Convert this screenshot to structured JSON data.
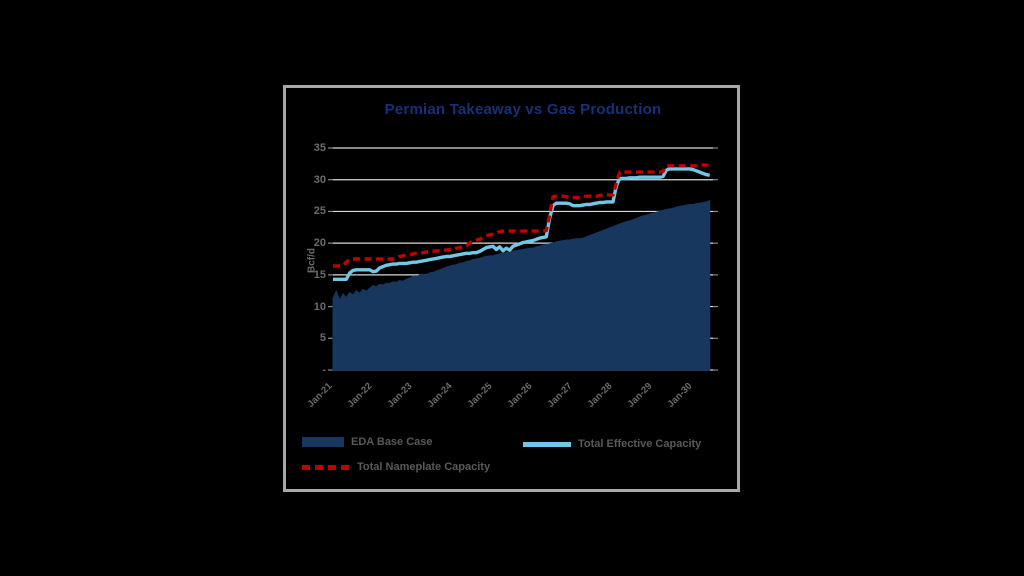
{
  "card": {
    "border_color": "#A8A8A8",
    "background": "#000000"
  },
  "chart": {
    "title": "Permian Takeaway vs Gas Production",
    "title_color": "#16307A",
    "ylabel": "Bcf/d",
    "axis_text_color": "#6b6b6b",
    "gridline_color": "#D9D9D9",
    "tick_mark_color": "#8a8a8a",
    "y_ticks": [
      "35",
      "30",
      "25",
      "20",
      "15",
      "10",
      "5",
      "-"
    ]
  },
  "chart_data": {
    "type": "area",
    "title": "Permian Takeaway vs Gas Production",
    "xlabel": "",
    "ylabel": "Bcf/d",
    "ylim": [
      0,
      35
    ],
    "y_tick_step": 5,
    "grid": "horizontal",
    "legend_position": "bottom",
    "x_tick_labels": [
      "Jan-21",
      "Jan-22",
      "Jan-23",
      "Jan-24",
      "Jan-25",
      "Jan-26",
      "Jan-27",
      "Jan-28",
      "Jan-29",
      "Jan-30"
    ],
    "x_unit": "monthly, Jan-2021 through Jun-2030",
    "series": [
      {
        "name": "EDA Base Case",
        "type": "area",
        "color": "#17375E",
        "values": [
          11.3,
          12.4,
          11.0,
          12.0,
          11.4,
          12.2,
          11.8,
          12.5,
          12.1,
          12.7,
          12.4,
          12.9,
          13.3,
          13.1,
          13.5,
          13.4,
          13.7,
          13.6,
          13.9,
          13.8,
          14.1,
          14.0,
          14.3,
          14.5,
          14.8,
          14.7,
          15.0,
          15.1,
          15.0,
          15.3,
          15.4,
          15.6,
          15.8,
          16.0,
          16.2,
          16.4,
          16.5,
          16.6,
          16.8,
          16.9,
          17.1,
          17.2,
          17.4,
          17.5,
          17.6,
          17.8,
          17.9,
          18.0,
          18.0,
          18.2,
          18.3,
          18.4,
          18.5,
          18.6,
          18.7,
          18.8,
          18.9,
          19.0,
          19.1,
          19.2,
          19.2,
          19.4,
          19.5,
          19.7,
          19.8,
          19.9,
          20.0,
          20.2,
          20.3,
          20.4,
          20.5,
          20.5,
          20.6,
          20.7,
          20.7,
          20.8,
          21.0,
          21.2,
          21.4,
          21.6,
          21.8,
          22.0,
          22.2,
          22.4,
          22.6,
          22.8,
          23.0,
          23.2,
          23.4,
          23.5,
          23.7,
          23.9,
          24.1,
          24.3,
          24.4,
          24.6,
          24.7,
          24.9,
          25.0,
          25.2,
          25.3,
          25.4,
          25.5,
          25.7,
          25.8,
          25.9,
          26.0,
          26.1,
          26.1,
          26.2,
          26.3,
          26.4,
          26.5,
          26.7
        ]
      },
      {
        "name": "Total Effective Capacity",
        "type": "line",
        "color": "#72C7E7",
        "values": [
          14.3,
          14.3,
          14.3,
          14.3,
          14.3,
          15.3,
          15.7,
          15.8,
          15.8,
          15.8,
          15.8,
          15.8,
          15.5,
          15.6,
          16.1,
          16.3,
          16.5,
          16.6,
          16.7,
          16.7,
          16.8,
          16.8,
          16.8,
          16.9,
          17.0,
          17.0,
          17.1,
          17.2,
          17.3,
          17.4,
          17.5,
          17.6,
          17.7,
          17.8,
          17.9,
          17.9,
          18.0,
          18.1,
          18.2,
          18.3,
          18.4,
          18.4,
          18.5,
          18.5,
          18.7,
          19.0,
          19.3,
          19.4,
          19.5,
          19.0,
          19.4,
          18.8,
          19.2,
          18.9,
          19.5,
          19.7,
          19.9,
          20.1,
          20.2,
          20.3,
          20.4,
          20.6,
          20.8,
          20.9,
          21.0,
          24.0,
          25.9,
          26.3,
          26.3,
          26.3,
          26.3,
          26.2,
          25.9,
          25.9,
          25.9,
          26.0,
          26.1,
          26.1,
          26.2,
          26.3,
          26.4,
          26.4,
          26.5,
          26.5,
          26.5,
          29.0,
          30.2,
          30.2,
          30.2,
          30.3,
          30.3,
          30.3,
          30.4,
          30.4,
          30.4,
          30.4,
          30.4,
          30.4,
          30.4,
          30.5,
          31.5,
          31.7,
          31.7,
          31.7,
          31.7,
          31.7,
          31.7,
          31.7,
          31.6,
          31.4,
          31.2,
          31.0,
          30.8,
          30.7
        ]
      },
      {
        "name": "Total Nameplate Capacity",
        "type": "dashed-line",
        "color": "#C00000",
        "values": [
          16.4,
          16.4,
          16.4,
          16.4,
          17.0,
          17.5,
          17.5,
          17.5,
          17.5,
          17.5,
          17.5,
          17.5,
          17.5,
          17.5,
          17.5,
          17.5,
          17.5,
          17.5,
          17.5,
          17.6,
          17.9,
          18.0,
          18.1,
          18.2,
          18.3,
          18.4,
          18.4,
          18.5,
          18.6,
          18.6,
          18.7,
          18.8,
          18.8,
          18.9,
          18.9,
          19.0,
          19.0,
          19.2,
          19.3,
          19.5,
          19.6,
          20.0,
          20.4,
          20.5,
          20.6,
          20.9,
          21.2,
          21.3,
          21.4,
          21.6,
          21.8,
          21.9,
          21.9,
          21.9,
          21.9,
          21.9,
          21.9,
          21.9,
          21.9,
          21.9,
          21.9,
          21.9,
          21.9,
          21.9,
          22.0,
          24.5,
          27.3,
          27.4,
          27.4,
          27.4,
          27.3,
          27.2,
          27.2,
          27.2,
          27.2,
          27.3,
          27.4,
          27.4,
          27.4,
          27.4,
          27.5,
          27.6,
          27.6,
          27.6,
          27.6,
          29.5,
          31.2,
          31.2,
          31.2,
          31.2,
          31.2,
          31.2,
          31.2,
          31.2,
          31.2,
          31.2,
          31.2,
          31.2,
          31.2,
          31.3,
          32.2,
          32.2,
          32.2,
          32.2,
          32.2,
          32.2,
          32.2,
          32.2,
          32.2,
          32.2,
          32.3,
          32.3,
          32.3,
          32.3
        ]
      }
    ]
  },
  "legend": {
    "items": [
      {
        "label": "EDA Base Case",
        "swatch": "filled-rect",
        "color": "#17375E"
      },
      {
        "label": "Total Effective Capacity",
        "swatch": "solid-line",
        "color": "#72C7E7"
      },
      {
        "label": "Total Nameplate Capacity",
        "swatch": "dashed-line",
        "color": "#C00000"
      }
    ]
  }
}
